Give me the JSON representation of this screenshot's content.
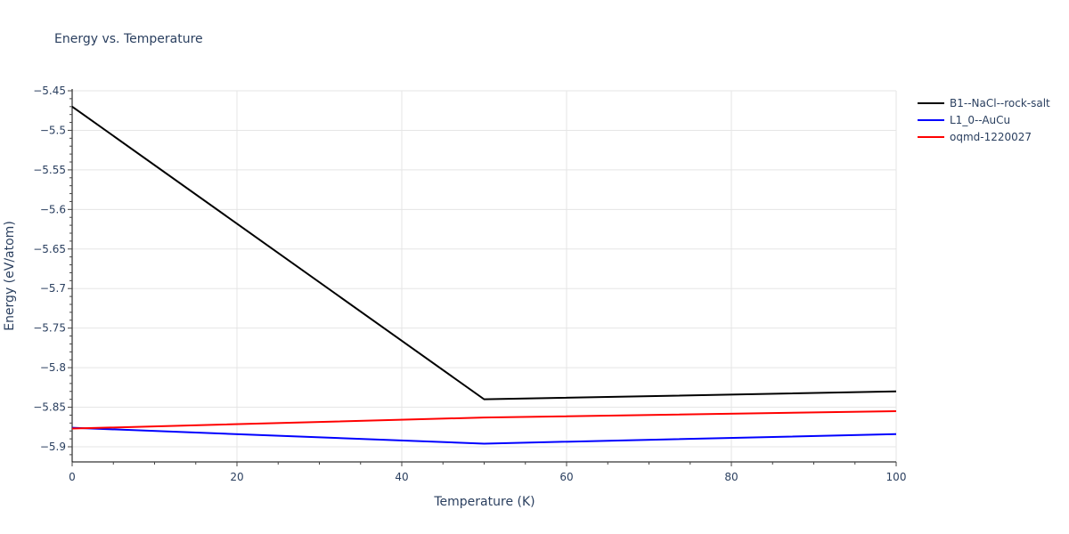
{
  "chart_data": {
    "type": "line",
    "title": "Energy vs. Temperature",
    "xlabel": "Temperature (K)",
    "ylabel": "Energy (eV/atom)",
    "xlim": [
      0,
      100
    ],
    "ylim": [
      -5.92,
      -5.45
    ],
    "x_ticks": [
      0,
      20,
      40,
      60,
      80,
      100
    ],
    "y_ticks": [
      -5.45,
      -5.5,
      -5.55,
      -5.6,
      -5.65,
      -5.7,
      -5.75,
      -5.8,
      -5.85,
      -5.9
    ],
    "grid": true,
    "legend_position": "right-top",
    "series": [
      {
        "name": "B1--NaCl--rock-salt",
        "color": "#000000",
        "x": [
          0,
          50,
          100
        ],
        "values": [
          -5.47,
          -5.84,
          -5.83
        ]
      },
      {
        "name": "L1_0--AuCu",
        "color": "#0000ff",
        "x": [
          0,
          50,
          100
        ],
        "values": [
          -5.876,
          -5.896,
          -5.884
        ]
      },
      {
        "name": "oqmd-1220027",
        "color": "#ff0000",
        "x": [
          0,
          50,
          100
        ],
        "values": [
          -5.877,
          -5.863,
          -5.855
        ]
      }
    ]
  },
  "labels": {
    "title": "Energy vs. Temperature",
    "xlabel": "Temperature (K)",
    "ylabel": "Energy (eV/atom)",
    "x_tick_labels": [
      "0",
      "20",
      "40",
      "60",
      "80",
      "100"
    ],
    "y_tick_labels": [
      "−5.45",
      "−5.5",
      "−5.55",
      "−5.6",
      "−5.65",
      "−5.7",
      "−5.75",
      "−5.8",
      "−5.85",
      "−5.9"
    ]
  },
  "legend": [
    {
      "label": "B1--NaCl--rock-salt",
      "color": "#000000"
    },
    {
      "label": "L1_0--AuCu",
      "color": "#0000ff"
    },
    {
      "label": "oqmd-1220027",
      "color": "#ff0000"
    }
  ]
}
